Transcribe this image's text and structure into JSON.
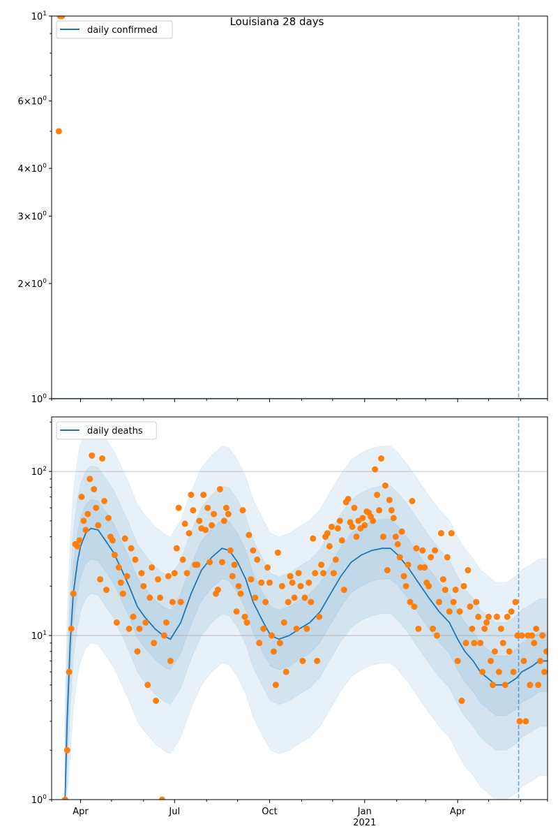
{
  "title": "Louisiana 28 days",
  "colors": {
    "line": "#1f77b4",
    "points": "#ff7f0e",
    "band": "#1f77b4",
    "grid": "#b0b0b0"
  },
  "chart_data": [
    {
      "type": "line",
      "panel": "top",
      "yscale": "log",
      "ylim": [
        1,
        10
      ],
      "xlim_days": [
        0,
        480
      ],
      "x_origin_date": "2020-03-04",
      "legend": {
        "label": "daily confirmed",
        "placement": "top-left"
      },
      "yticks": [
        {
          "value": 1,
          "mantissa": "",
          "exp": "0"
        },
        {
          "value": 2,
          "mantissa": "2",
          "exp": "0"
        },
        {
          "value": 3,
          "mantissa": "3",
          "exp": "0"
        },
        {
          "value": 4,
          "mantissa": "4",
          "exp": "0"
        },
        {
          "value": 6,
          "mantissa": "6",
          "exp": "0"
        },
        {
          "value": 10,
          "mantissa": "",
          "exp": "1"
        }
      ],
      "minor_yticks": [
        5,
        7,
        8,
        9
      ],
      "line": [
        [
          0,
          1
        ],
        [
          480,
          1
        ]
      ],
      "scatter": [
        [
          7,
          5
        ],
        [
          8,
          10
        ],
        [
          10,
          10
        ]
      ],
      "vline_day": 452
    },
    {
      "type": "line",
      "panel": "bottom",
      "yscale": "log",
      "ylim": [
        1,
        215
      ],
      "xlim_days": [
        0,
        480
      ],
      "legend": {
        "label": "daily deaths",
        "placement": "top-left"
      },
      "yticks": [
        {
          "value": 1,
          "mantissa": "",
          "exp": "0"
        },
        {
          "value": 10,
          "mantissa": "",
          "exp": "1"
        },
        {
          "value": 100,
          "mantissa": "",
          "exp": "2"
        }
      ],
      "grid_y": [
        10,
        100
      ],
      "xticks": [
        {
          "day": 28,
          "label": "Apr",
          "sub": ""
        },
        {
          "day": 119,
          "label": "Jul",
          "sub": ""
        },
        {
          "day": 211,
          "label": "Oct",
          "sub": ""
        },
        {
          "day": 303,
          "label": "Jan",
          "sub": "2021"
        },
        {
          "day": 393,
          "label": "Apr",
          "sub": ""
        }
      ],
      "minor_xticks": [
        0,
        58,
        89,
        150,
        180,
        242,
        272,
        334,
        362,
        423,
        454,
        480
      ],
      "trend": [
        [
          13,
          1
        ],
        [
          15,
          3
        ],
        [
          18,
          9
        ],
        [
          21,
          18
        ],
        [
          25,
          28
        ],
        [
          28,
          35
        ],
        [
          33,
          42
        ],
        [
          38,
          45
        ],
        [
          45,
          44
        ],
        [
          52,
          38
        ],
        [
          60,
          32
        ],
        [
          68,
          25
        ],
        [
          75,
          20
        ],
        [
          83,
          15
        ],
        [
          90,
          13
        ],
        [
          100,
          11
        ],
        [
          108,
          10
        ],
        [
          115,
          9.5
        ],
        [
          125,
          12
        ],
        [
          135,
          18
        ],
        [
          145,
          25
        ],
        [
          155,
          30
        ],
        [
          165,
          34
        ],
        [
          172,
          33
        ],
        [
          180,
          28
        ],
        [
          188,
          22
        ],
        [
          195,
          16
        ],
        [
          205,
          12
        ],
        [
          212,
          10
        ],
        [
          220,
          9.5
        ],
        [
          230,
          10
        ],
        [
          240,
          11
        ],
        [
          250,
          12
        ],
        [
          260,
          14
        ],
        [
          270,
          18
        ],
        [
          280,
          23
        ],
        [
          290,
          28
        ],
        [
          300,
          31
        ],
        [
          310,
          33
        ],
        [
          320,
          34
        ],
        [
          328,
          34
        ],
        [
          335,
          31
        ],
        [
          345,
          26
        ],
        [
          355,
          21
        ],
        [
          365,
          17
        ],
        [
          375,
          14
        ],
        [
          385,
          12
        ],
        [
          393,
          9.5
        ],
        [
          400,
          8
        ],
        [
          408,
          7
        ],
        [
          415,
          6
        ],
        [
          422,
          5.5
        ],
        [
          430,
          5
        ],
        [
          440,
          5
        ],
        [
          450,
          5.5
        ],
        [
          455,
          6
        ],
        [
          465,
          6.5
        ],
        [
          472,
          7
        ],
        [
          480,
          7
        ]
      ],
      "bands": [
        {
          "lower_factor": 0.2,
          "upper_factor": 4.2
        },
        {
          "lower_factor": 0.4,
          "upper_factor": 2.4
        },
        {
          "lower_factor": 0.65,
          "upper_factor": 1.5
        }
      ],
      "scatter": {
        "x_start": 13,
        "x_step": 2,
        "values": [
          1,
          2,
          6,
          11,
          18,
          36,
          35,
          38,
          70,
          50,
          44,
          55,
          90,
          125,
          78,
          60,
          47,
          22,
          120,
          66,
          19,
          52,
          40,
          38,
          31,
          12,
          26,
          21,
          18,
          39,
          23,
          11,
          34,
          13,
          29,
          8,
          11,
          24,
          20,
          12,
          5,
          17,
          26,
          9,
          4,
          22,
          17,
          1,
          10,
          12,
          23,
          7,
          16,
          24,
          34,
          60,
          16,
          29,
          48,
          24,
          42,
          72,
          58,
          27,
          27,
          50,
          45,
          72,
          44,
          60,
          28,
          47,
          55,
          18,
          19,
          78,
          28,
          50,
          60,
          55,
          33,
          23,
          27,
          14,
          20,
          18,
          58,
          13,
          12,
          41,
          22,
          33,
          17,
          29,
          9,
          21,
          11,
          16,
          26,
          21,
          10,
          8,
          5,
          32,
          9,
          20,
          12,
          6,
          16,
          23,
          21,
          17,
          11,
          24,
          20,
          7,
          17,
          11,
          21,
          16,
          39,
          24,
          7,
          13,
          27,
          24,
          40,
          42,
          35,
          46,
          24,
          29,
          45,
          50,
          38,
          19,
          65,
          68,
          49,
          46,
          60,
          40,
          50,
          45,
          52,
          47,
          57,
          56,
          53,
          50,
          103,
          72,
          58,
          120,
          40,
          82,
          25,
          67,
          58,
          52,
          40,
          36,
          30,
          43,
          23,
          20,
          27,
          16,
          66,
          15,
          34,
          11,
          26,
          33,
          26,
          21,
          20,
          30,
          11,
          33,
          10,
          16,
          42,
          22,
          19,
          30,
          14,
          42,
          16,
          19,
          7,
          14,
          4,
          20,
          9,
          25,
          15,
          11,
          9,
          16,
          13,
          9,
          6,
          11,
          12,
          13,
          7,
          5,
          8,
          13,
          6,
          11,
          9,
          5,
          13,
          8,
          14,
          6,
          16,
          10,
          3,
          10,
          7,
          3,
          10,
          5,
          10,
          9,
          11,
          5,
          7,
          10,
          6,
          8
        ]
      },
      "vline_day": 452
    }
  ]
}
